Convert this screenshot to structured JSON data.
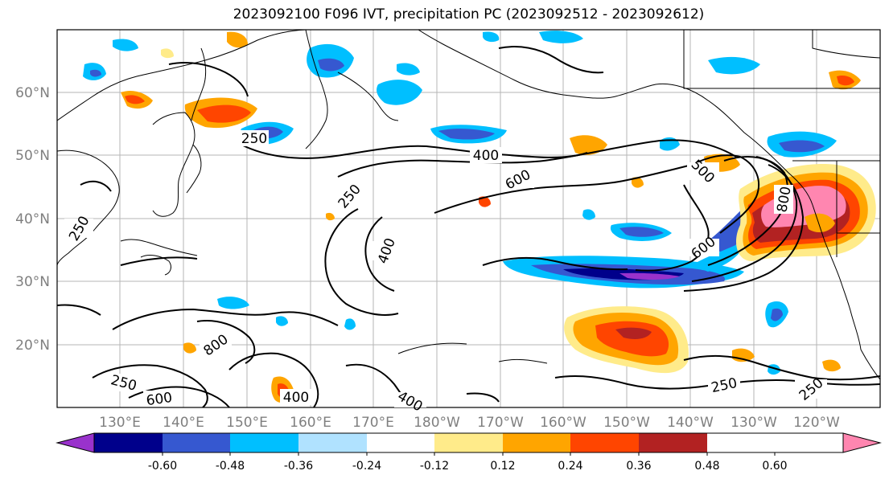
{
  "title": "2023092100 F096 IVT, precipitation PC (2023092512 - 2023092612)",
  "lat_labels": [
    "60°N",
    "50°N",
    "40°N",
    "30°N",
    "20°N"
  ],
  "lon_labels": [
    "130°E",
    "140°E",
    "150°E",
    "160°E",
    "170°E",
    "180°W",
    "170°W",
    "160°W",
    "150°W",
    "140°W",
    "130°W",
    "120°W"
  ],
  "colorbar": {
    "colors": [
      "#9932cc",
      "#00008b",
      "#3658d0",
      "#00bfff",
      "#b0e2ff",
      "#ffffff",
      "#ffeb8a",
      "#ffa500",
      "#ff4500",
      "#b22222",
      "#ff86b0"
    ],
    "tick_labels": [
      "-0.60",
      "-0.48",
      "-0.36",
      "-0.24",
      "-0.12",
      "0.12",
      "0.24",
      "0.36",
      "0.48",
      "0.60"
    ]
  },
  "contour_labels": {
    "c250_nw": "250",
    "c400_n": "400",
    "c600_n": "600",
    "c250_mid": "250",
    "c400_mid": "400",
    "c500_ne": "500",
    "c800_coast": "800",
    "c600_e": "600",
    "c250_w": "250",
    "c800_sw": "800",
    "c250_sw": "250",
    "c600_sw": "600",
    "c400_s": "400",
    "c400_s2": "400",
    "c250_se": "250",
    "c250_se2": "250"
  }
}
